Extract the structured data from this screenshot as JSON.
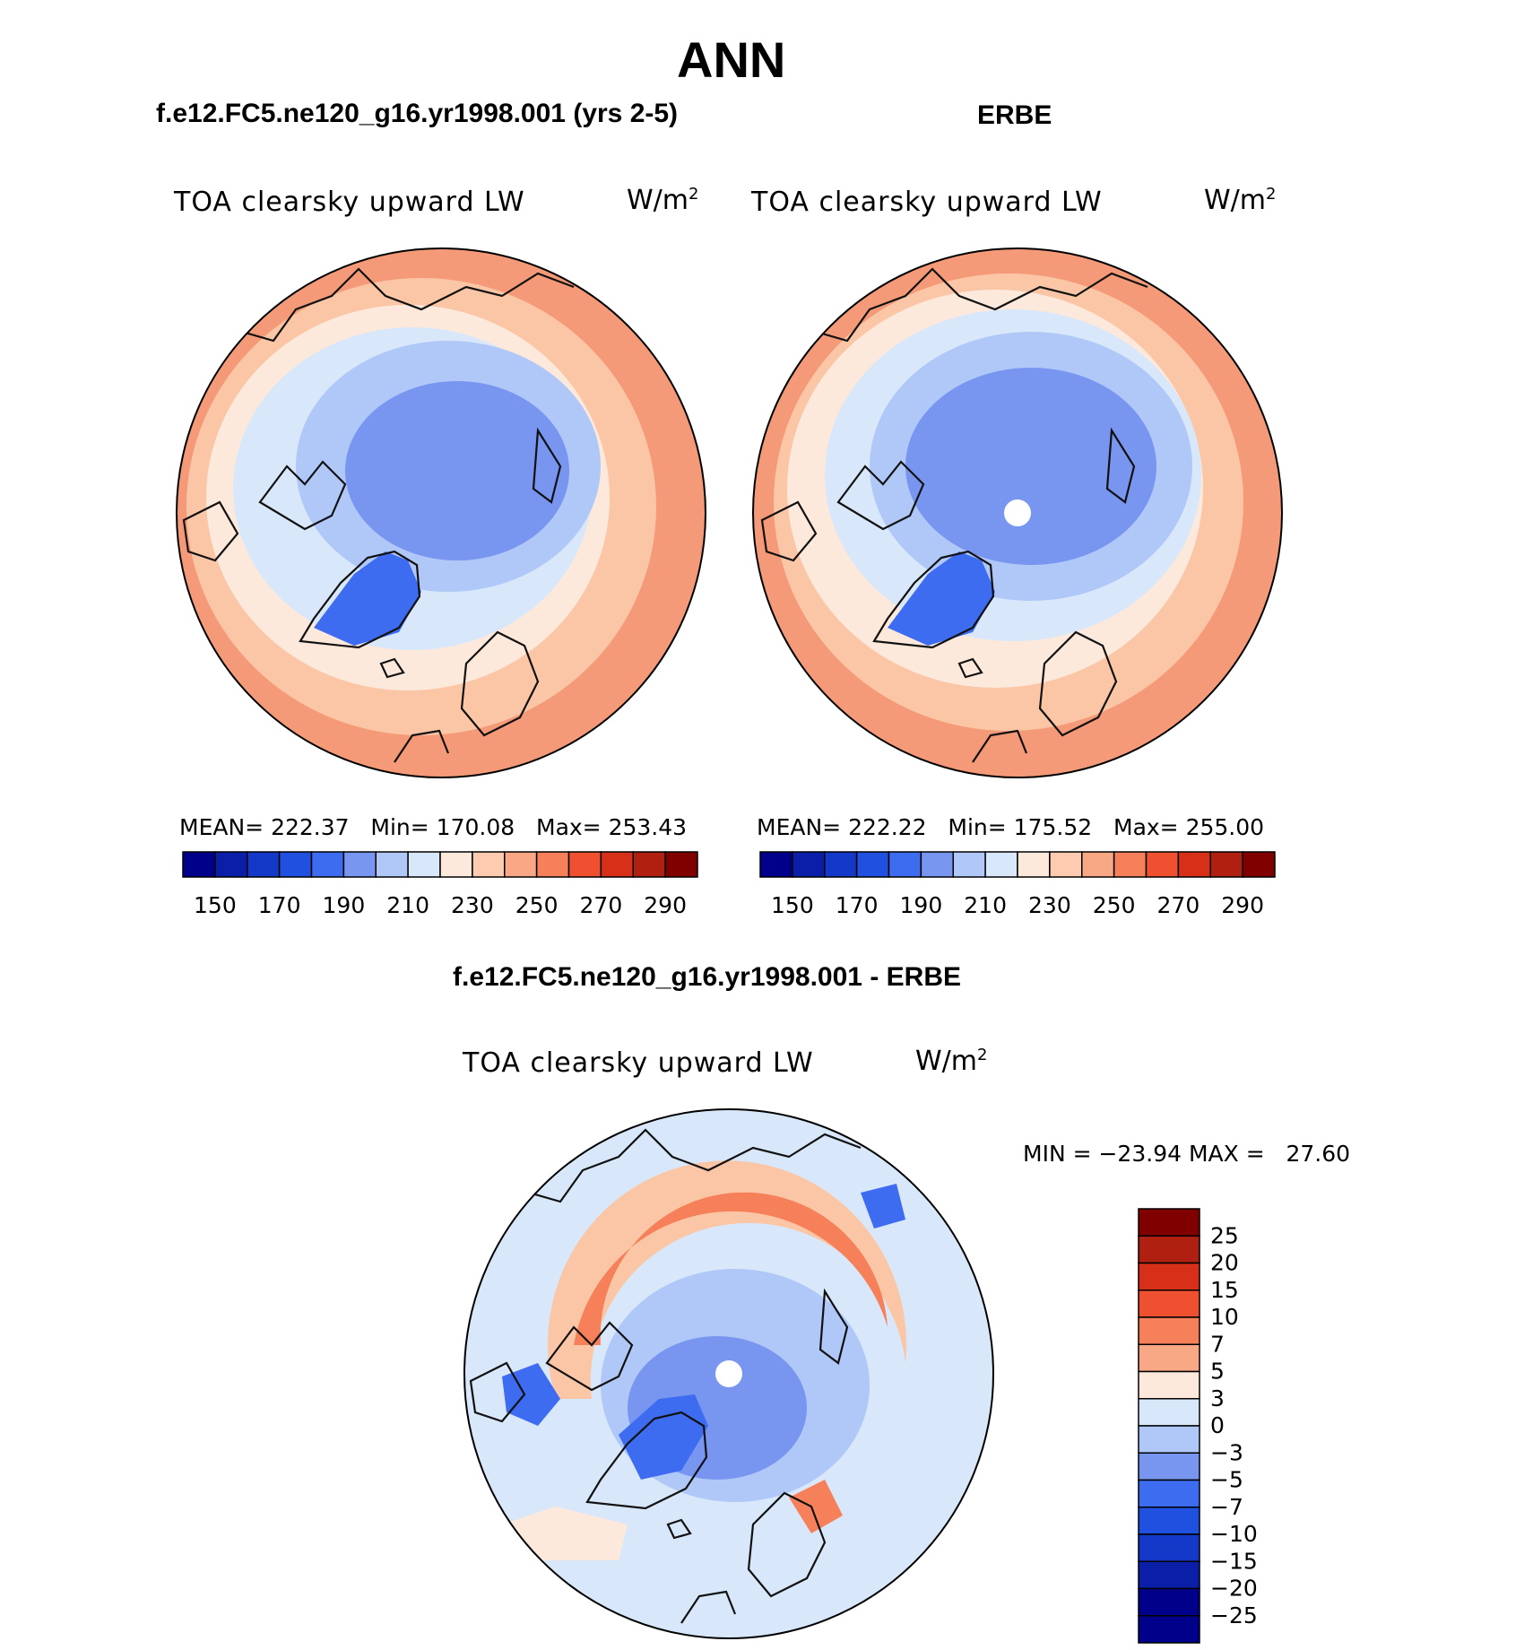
{
  "page": {
    "season": "ANN",
    "panel1": {
      "title": "f.e12.FC5.ne120_g16.yr1998.001 (yrs 2-5)",
      "variable": "TOA clearsky upward LW",
      "units_base": "W/m",
      "units_exp": "2",
      "stats": {
        "mean_label": "MEAN=",
        "mean": "222.37",
        "min_label": "Min=",
        "min": "170.08",
        "max_label": "Max=",
        "max": "253.43"
      }
    },
    "panel2": {
      "title": "ERBE",
      "variable": "TOA clearsky upward LW",
      "units_base": "W/m",
      "units_exp": "2",
      "stats": {
        "mean_label": "MEAN=",
        "mean": "222.22",
        "min_label": "Min=",
        "min": "175.52",
        "max_label": "Max=",
        "max": "255.00"
      }
    },
    "panel3": {
      "title": "f.e12.FC5.ne120_g16.yr1998.001 - ERBE",
      "variable": "TOA clearsky upward LW",
      "units_base": "W/m",
      "units_exp": "2",
      "minmax": "MIN = −23.94 MAX =   27.60"
    }
  },
  "colorbars": {
    "absolute": {
      "colors": [
        "#00008b",
        "#0a1ea8",
        "#1438c8",
        "#2050e0",
        "#3e6cf0",
        "#7896f0",
        "#b0c8f8",
        "#d8e8fa",
        "#fde9dc",
        "#fccbb0",
        "#f9a886",
        "#f5805a",
        "#ee5030",
        "#d83018",
        "#b02010",
        "#800000"
      ],
      "tick_labels": [
        "150",
        "170",
        "190",
        "210",
        "230",
        "250",
        "270",
        "290"
      ]
    },
    "difference": {
      "colors": [
        "#800000",
        "#b02010",
        "#d83018",
        "#ee5030",
        "#f5805a",
        "#f9a886",
        "#fde9dc",
        "#d8e8fa",
        "#b0c8f8",
        "#7896f0",
        "#3e6cf0",
        "#2050e0",
        "#1438c8",
        "#0a1ea8",
        "#00008b"
      ],
      "tick_labels": [
        "25",
        "20",
        "15",
        "10",
        "7",
        "5",
        "3",
        "0",
        "−3",
        "−5",
        "−7",
        "−10",
        "−15",
        "−20",
        "−25"
      ]
    }
  },
  "map_colors": {
    "warm_outer": "#f59a78",
    "warm_mid": "#fbc6a6",
    "warm_light": "#fde9dc",
    "cool_light": "#d8e8fa",
    "cool_mid": "#b0c8f8",
    "cool_deep": "#7896f0",
    "cool_strong": "#3e6cf0",
    "coast": "#111111"
  }
}
